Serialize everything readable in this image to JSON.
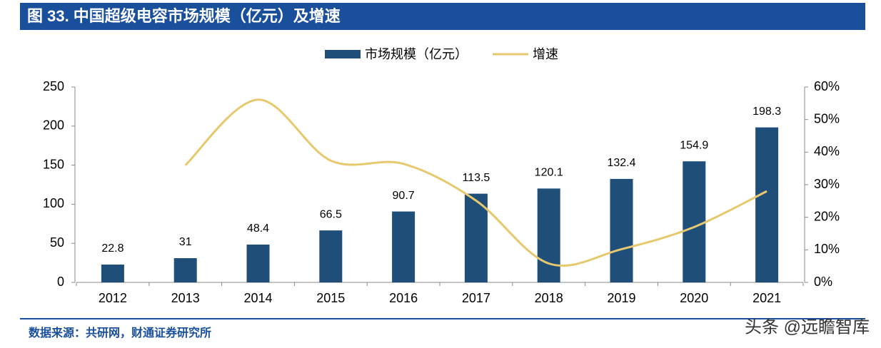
{
  "header": {
    "title": "图 33. 中国超级电容市场规模（亿元）及增速"
  },
  "chart_data": {
    "type": "bar",
    "categories": [
      "2012",
      "2013",
      "2014",
      "2015",
      "2016",
      "2017",
      "2018",
      "2019",
      "2020",
      "2021"
    ],
    "series": [
      {
        "name": "市场规模（亿元）",
        "type": "bar",
        "color": "#1f4e79",
        "values": [
          22.8,
          31,
          48.4,
          66.5,
          90.7,
          113.5,
          120.1,
          132.4,
          154.9,
          198.3
        ]
      },
      {
        "name": "增速",
        "type": "line",
        "color": "#e6c96e",
        "axis": "y2",
        "values": [
          null,
          36.0,
          56.1,
          37.4,
          36.4,
          25.1,
          5.8,
          10.2,
          17.0,
          28.0
        ]
      }
    ],
    "ylim": [
      0,
      250
    ],
    "yticks": [
      0,
      50,
      100,
      150,
      200,
      250
    ],
    "y2lim": [
      0,
      60
    ],
    "y2ticks": [
      {
        "value": 0,
        "label": "0%"
      },
      {
        "value": 10,
        "label": "10%"
      },
      {
        "value": 20,
        "label": "20%"
      },
      {
        "value": 30,
        "label": "30%"
      },
      {
        "value": 40,
        "label": "40%"
      },
      {
        "value": 50,
        "label": "50%"
      },
      {
        "value": 60,
        "label": "60%"
      }
    ],
    "legend": "top"
  },
  "footer": {
    "source": "数据来源：共研网，财通证券研究所",
    "watermark": "头条 @远瞻智库"
  }
}
